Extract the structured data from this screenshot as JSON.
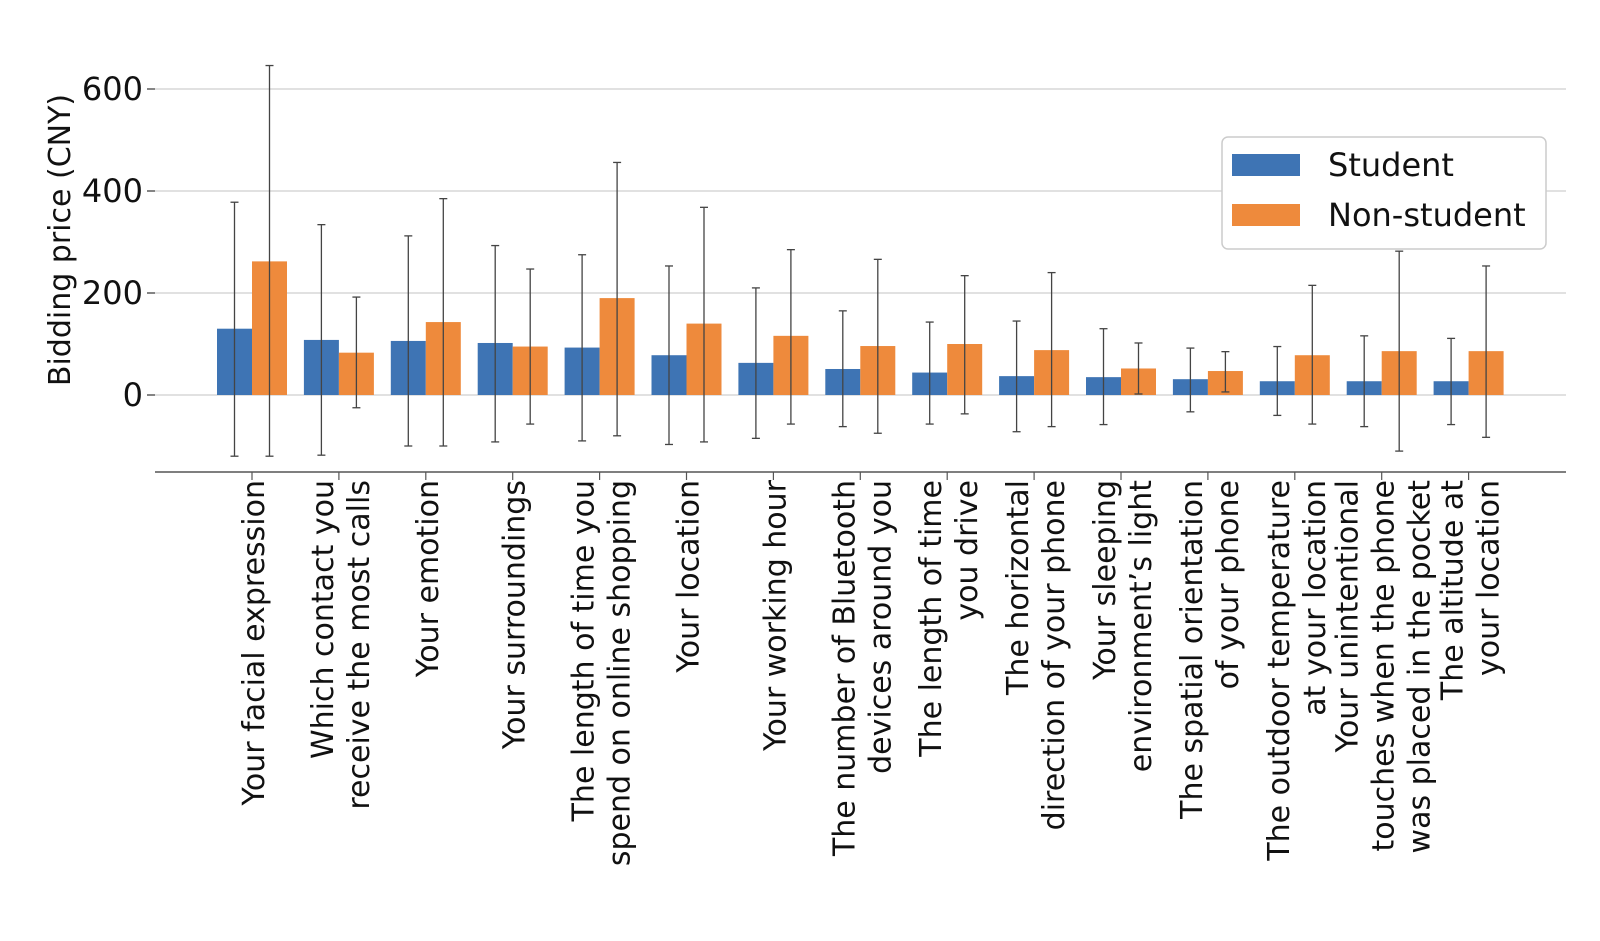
{
  "chart_data": {
    "type": "bar",
    "title": "",
    "xlabel": "",
    "ylabel": "Bidding price (CNY)",
    "ylim": [
      -150,
      650
    ],
    "yticks": [
      0,
      200,
      400,
      600
    ],
    "grid": "horizontal",
    "legend_position": "right",
    "categories": [
      [
        "Your facial expression"
      ],
      [
        "Which contact you",
        "receive the most calls"
      ],
      [
        "Your emotion"
      ],
      [
        "Your surroundings"
      ],
      [
        "The length of time you",
        "spend on online shopping"
      ],
      [
        "Your location"
      ],
      [
        "Your working hour"
      ],
      [
        "The number of Bluetooth",
        "devices around you"
      ],
      [
        "The length of time",
        "you drive"
      ],
      [
        "The horizontal",
        "direction of your phone"
      ],
      [
        "Your sleeping",
        "environment’s light"
      ],
      [
        "The spatial orientation",
        "of your phone"
      ],
      [
        "The outdoor temperature",
        "at your location"
      ],
      [
        "Your unintentional",
        "touches when the phone",
        "was placed in the pocket"
      ],
      [
        "The altitude at",
        "your location"
      ]
    ],
    "series": [
      {
        "name": "Student",
        "color": "#3e74b4",
        "values": [
          130,
          108,
          106,
          102,
          93,
          78,
          63,
          51,
          44,
          37,
          35,
          31,
          27,
          27,
          27
        ],
        "error_low": [
          -120,
          -118,
          -100,
          -92,
          -90,
          -97,
          -85,
          -62,
          -57,
          -72,
          -58,
          -33,
          -40,
          -62,
          -58
        ],
        "error_high": [
          378,
          334,
          312,
          293,
          275,
          253,
          210,
          165,
          143,
          145,
          130,
          92,
          95,
          116,
          111
        ]
      },
      {
        "name": "Non-student",
        "color": "#ee8a3c",
        "values": [
          262,
          83,
          143,
          95,
          190,
          140,
          116,
          96,
          100,
          88,
          52,
          47,
          78,
          86,
          86
        ],
        "error_low": [
          -120,
          -25,
          -100,
          -57,
          -80,
          -92,
          -57,
          -75,
          -37,
          -62,
          2,
          6,
          -57,
          -110,
          -83
        ],
        "error_high": [
          646,
          192,
          385,
          247,
          456,
          368,
          285,
          266,
          234,
          240,
          102,
          85,
          215,
          282,
          253
        ]
      }
    ]
  }
}
